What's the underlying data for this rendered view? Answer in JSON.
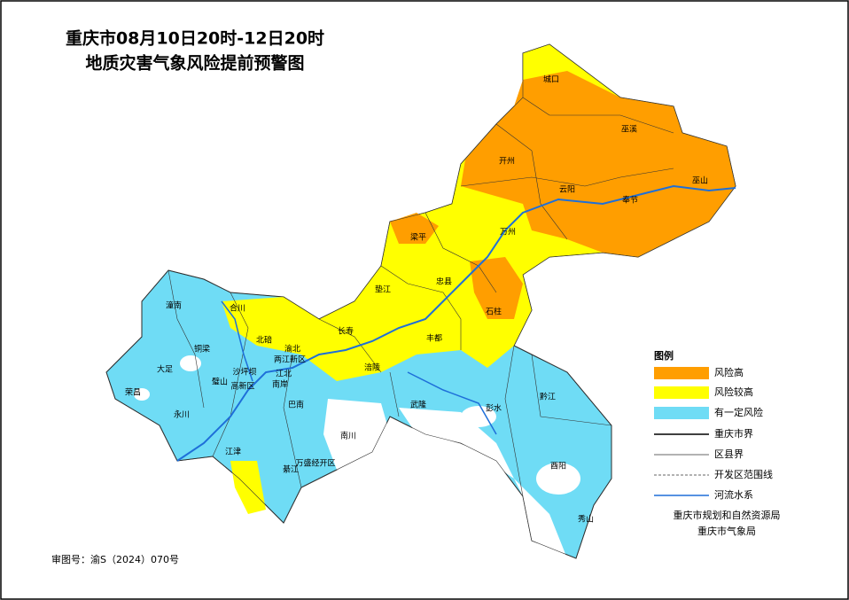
{
  "header": {
    "title_line1": "重庆市08月10日20时-12日20时",
    "title_line2": "地质灾害气象风险提前预警图"
  },
  "districts": [
    "城口",
    "巫溪",
    "开州",
    "巫山",
    "云阳",
    "奉节",
    "梁平",
    "万州",
    "忠县",
    "石柱",
    "垫江",
    "长寿",
    "丰都",
    "涪陵",
    "潼南",
    "合川",
    "铜梁",
    "北碚",
    "渝北",
    "两江新区",
    "大足",
    "沙坪坝",
    "江北",
    "璧山",
    "高新区",
    "南岸",
    "荣昌",
    "永川",
    "巴南",
    "武隆",
    "彭水",
    "黔江",
    "江津",
    "南川",
    "綦江",
    "万盛经开区",
    "酉阳",
    "秀山"
  ],
  "legend": {
    "title": "图例",
    "items": [
      "风险高",
      "风险较高",
      "有一定风险",
      "重庆市界",
      "区县界",
      "开发区范围线",
      "河流水系"
    ]
  },
  "credits": [
    "重庆市规划和自然资源局",
    "重庆市气象局"
  ],
  "review_number": "审图号：渝S（2024）070号"
}
